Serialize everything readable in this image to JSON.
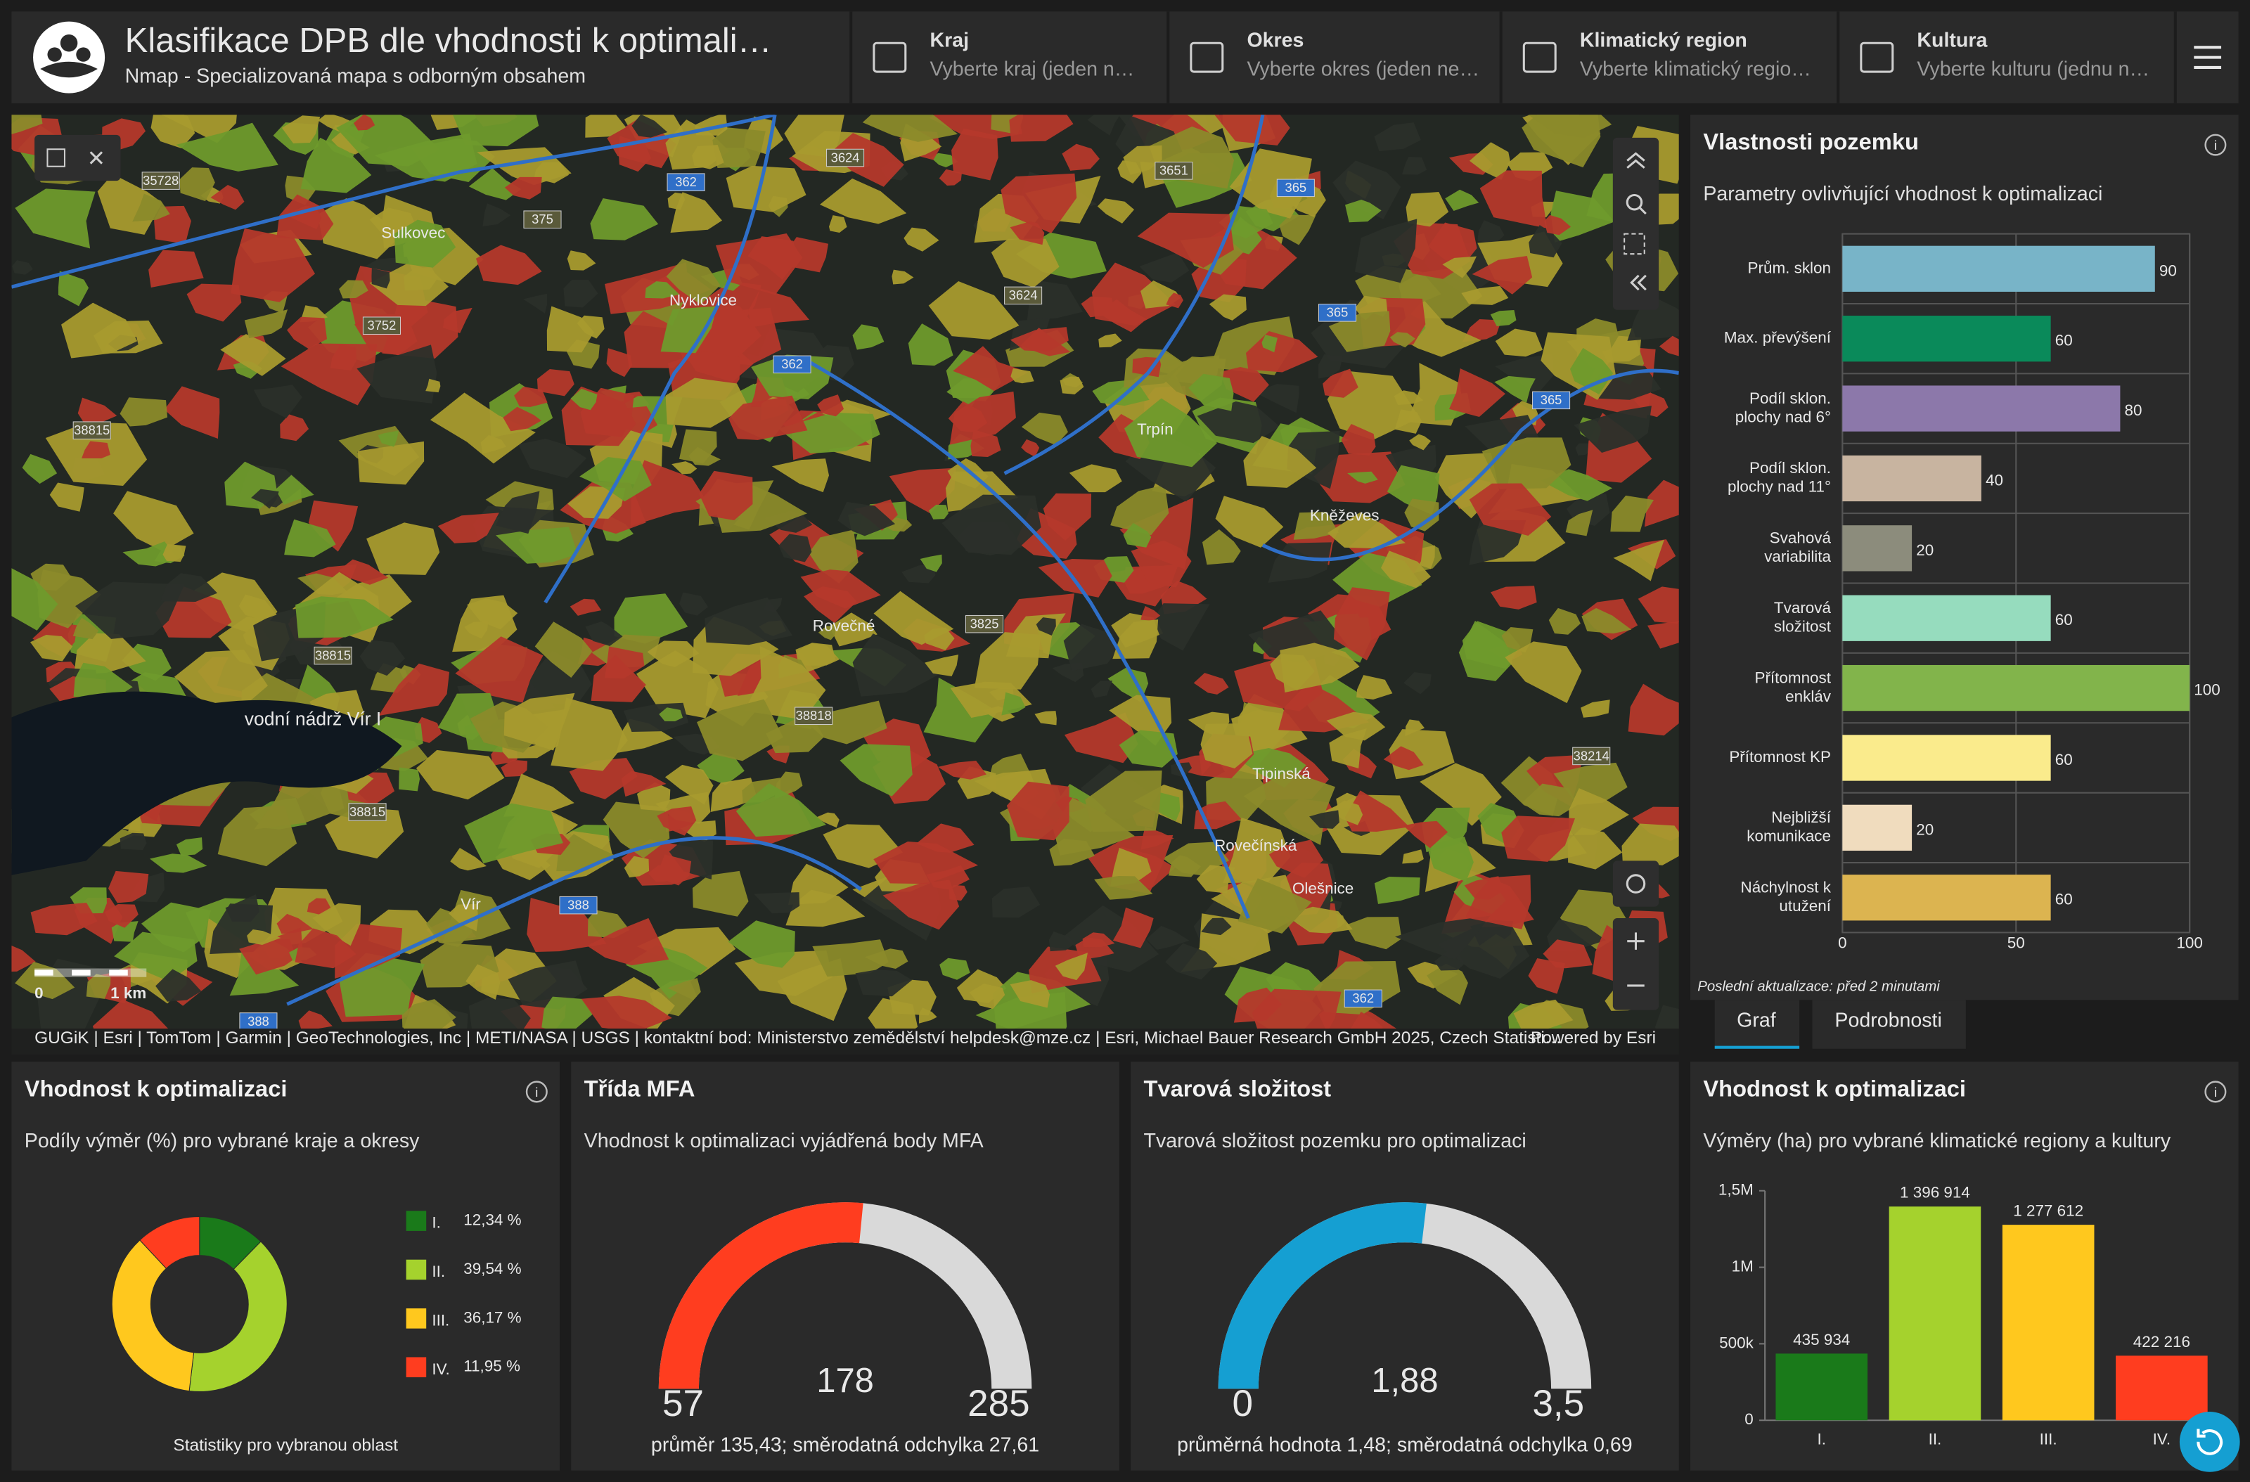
{
  "header": {
    "title": "Klasifikace DPB dle vhodnosti k optimali…",
    "subtitle": "Nmap - Specializovaná mapa s odborným obsahem"
  },
  "filters": [
    {
      "label": "Kraj",
      "placeholder": "Vyberte kraj (jeden n…"
    },
    {
      "label": "Okres",
      "placeholder": "Vyberte okres (jeden ne…"
    },
    {
      "label": "Klimatický region",
      "placeholder": "Vyberte klimatický regio…"
    },
    {
      "label": "Kultura",
      "placeholder": "Vyberte kulturu (jednu n…"
    }
  ],
  "map": {
    "places": [
      "Sulkovec",
      "Nyklovice",
      "Trpín",
      "Kněževes",
      "Rovečné",
      "vodní nádrž Vír I",
      "Vír",
      "Olešnice",
      "Tipinská",
      "Rovečínská"
    ],
    "roads": [
      "35728",
      "362",
      "375",
      "3624",
      "3651",
      "365",
      "3752",
      "3624",
      "362",
      "365",
      "365",
      "38815",
      "3825",
      "38815",
      "38818",
      "38214",
      "38815",
      "388",
      "388",
      "362"
    ],
    "scale": [
      "0",
      "1 km"
    ],
    "attribution": "GUGiK | Esri | TomTom | Garmin | GeoTechnologies, Inc | METI/NASA | USGS | kontaktní bod: Ministerstvo zemědělství helpdesk@mze.cz | Esri, Michael Bauer Research GmbH 2025, Czech Statisti…",
    "powered": "Powered by Esri"
  },
  "tabs": [
    "Graf",
    "Podrobnosti"
  ],
  "chart_data": [
    {
      "type": "hbar",
      "title": "Vlastnosti pozemku",
      "subtitle": "Parametry ovlivňující vhodnost k optimalizaci",
      "categories": [
        "Prům. sklon",
        "Max. převýšení",
        "Podíl sklon. plochy nad 6°",
        "Podíl sklon. plochy nad 11°",
        "Svahová variabilita",
        "Tvarová složitost",
        "Přítomnost enkláv",
        "Přítomnost KP",
        "Nejbližší komunikace",
        "Náchylnost k utužení"
      ],
      "values": [
        90,
        60,
        80,
        40,
        20,
        60,
        100,
        60,
        20,
        60
      ],
      "colors": [
        "#78b4c8",
        "#0a8a5a",
        "#8c78aa",
        "#c8b4a0",
        "#8c8c7c",
        "#96dcbe",
        "#82b44b",
        "#faeb8c",
        "#f0dcbe",
        "#dcb450"
      ],
      "xlim": [
        0,
        100
      ],
      "xticks": [
        0,
        50,
        100
      ],
      "grid": true,
      "footnote": "Poslední aktualizace: před 2 minutami"
    },
    {
      "type": "donut",
      "title": "Vhodnost k optimalizaci",
      "subtitle": "Podíly výměr (%) pro vybrané kraje a okresy",
      "categories": [
        "I.",
        "II.",
        "III.",
        "IV."
      ],
      "values": [
        12.34,
        39.54,
        36.17,
        11.95
      ],
      "value_labels": [
        "12,34 %",
        "39,54 %",
        "36,17 %",
        "11,95 %"
      ],
      "colors": [
        "#1a7a1a",
        "#a5d22d",
        "#ffc81e",
        "#ff3d1f"
      ],
      "footer": "Statistiky pro vybranou oblast"
    },
    {
      "type": "gauge",
      "title": "Třída MFA",
      "subtitle": "Vhodnost k optimalizaci vyjádřená body MFA",
      "ylim": [
        57,
        285
      ],
      "value": 178,
      "color": "#ff3d1f",
      "footer": "průměr 135,43; směrodatná odchylka 27,61"
    },
    {
      "type": "gauge",
      "title": "Tvarová složitost",
      "subtitle": "Tvarová složitost pozemku pro optimalizaci",
      "ylim": [
        0,
        3.5
      ],
      "range_labels": [
        "0",
        "3,5"
      ],
      "value": 1.88,
      "value_label": "1,88",
      "color": "#159fd2",
      "footer": "průměrná hodnota 1,48; směrodatná odchylka 0,69"
    },
    {
      "type": "bar",
      "title": "Vhodnost k optimalizaci",
      "subtitle": "Výměry (ha) pro vybrané klimatické regiony a kultury",
      "categories": [
        "I.",
        "II.",
        "III.",
        "IV."
      ],
      "values": [
        435934,
        1396914,
        1277612,
        422216
      ],
      "value_labels": [
        "435 934",
        "1 396 914",
        "1 277 612",
        "422 216"
      ],
      "colors": [
        "#1a7a1a",
        "#a5d22d",
        "#ffc81e",
        "#ff3d1f"
      ],
      "ylim": [
        0,
        1500000
      ],
      "yticks": [
        0,
        {
          "value": 500000,
          "label": "500k"
        },
        {
          "value": 1000000,
          "label": "1M"
        },
        {
          "value": 1500000,
          "label": "1,5M"
        }
      ]
    }
  ]
}
